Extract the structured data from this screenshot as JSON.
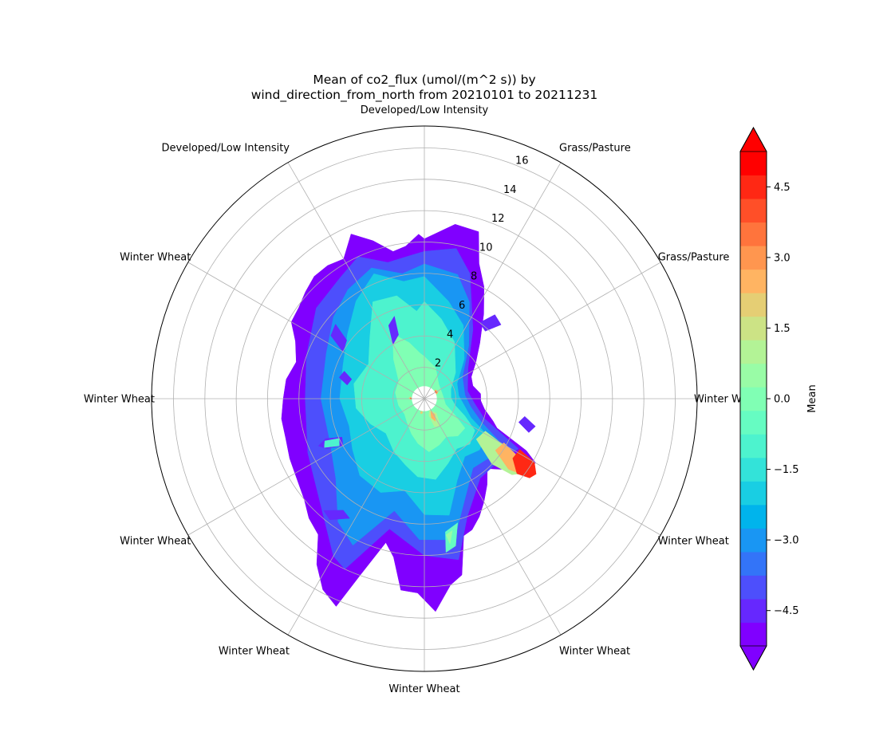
{
  "chart_data": {
    "type": "polar-contour",
    "title": "Mean of co2_flux (umol/(m^2 s)) by\nwind_direction_from_north from 20210101 to 20211231",
    "title_lines": [
      "Mean of co2_flux (umol/(m^2 s)) by",
      "wind_direction_from_north from 20210101 to 20211231"
    ],
    "theta_zero": "north",
    "theta_direction": "clockwise",
    "direction_labels": [
      {
        "angle": 0,
        "text": "Developed/Low Intensity"
      },
      {
        "angle": 30,
        "text": "Grass/Pasture"
      },
      {
        "angle": 60,
        "text": "Grass/Pasture"
      },
      {
        "angle": 90,
        "text": "Winter Wheat"
      },
      {
        "angle": 120,
        "text": "Winter Wheat"
      },
      {
        "angle": 150,
        "text": "Winter Wheat"
      },
      {
        "angle": 180,
        "text": "Winter Wheat"
      },
      {
        "angle": 210,
        "text": "Winter Wheat"
      },
      {
        "angle": 240,
        "text": "Winter Wheat"
      },
      {
        "angle": 270,
        "text": "Winter Wheat"
      },
      {
        "angle": 300,
        "text": "Winter Wheat"
      },
      {
        "angle": 330,
        "text": "Developed/Low Intensity"
      }
    ],
    "r_ticks": [
      2,
      4,
      6,
      8,
      10,
      12,
      14,
      16
    ],
    "r_tick_labels": [
      "2",
      "4",
      "6",
      "8",
      "10",
      "12",
      "14",
      "16"
    ],
    "r_tick_angle": 22.5,
    "r_max": 17.4,
    "grid": true,
    "colormap": "rainbow",
    "colorbar": {
      "label": "Mean",
      "vmin": -5.25,
      "vmax": 5.25,
      "levels": 21,
      "ticks": [
        -4.5,
        -3.0,
        -1.5,
        0.0,
        1.5,
        3.0,
        4.5
      ],
      "tick_labels": [
        "−4.5",
        "−3.0",
        "−1.5",
        "0.0",
        "1.5",
        "3.0",
        "4.5"
      ],
      "extend": "both",
      "location": "right"
    },
    "regions": [
      {
        "level": -5.0,
        "points": [
          [
            0,
            10.2
          ],
          [
            10,
            11.3
          ],
          [
            18,
            11.2
          ],
          [
            22,
            9.3
          ],
          [
            28,
            8.1
          ],
          [
            35,
            6.6
          ],
          [
            45,
            5.0
          ],
          [
            55,
            4.0
          ],
          [
            65,
            3.3
          ],
          [
            75,
            3.2
          ],
          [
            85,
            3.6
          ],
          [
            92,
            3.6
          ],
          [
            100,
            3.9
          ],
          [
            108,
            4.6
          ],
          [
            112,
            5.0
          ],
          [
            117,
            7.3
          ],
          [
            120,
            8.2
          ],
          [
            126,
            7.7
          ],
          [
            133,
            6.6
          ],
          [
            138,
            6.0
          ],
          [
            144,
            6.8
          ],
          [
            150,
            7.6
          ],
          [
            155,
            8.3
          ],
          [
            160,
            8.9
          ],
          [
            164,
            9.1
          ],
          [
            168,
            11.5
          ],
          [
            172,
            12.0
          ],
          [
            177,
            13.6
          ],
          [
            182,
            12.4
          ],
          [
            187,
            12.3
          ],
          [
            191,
            10.3
          ],
          [
            195,
            9.5
          ],
          [
            200,
            12.0
          ],
          [
            203,
            14.4
          ],
          [
            208,
            13.8
          ],
          [
            213,
            12.6
          ],
          [
            218,
            11.0
          ],
          [
            224,
            10.6
          ],
          [
            230,
            10.0
          ],
          [
            238,
            9.6
          ],
          [
            246,
            9.4
          ],
          [
            254,
            9.2
          ],
          [
            262,
            9.2
          ],
          [
            270,
            9.0
          ],
          [
            278,
            8.9
          ],
          [
            286,
            8.5
          ],
          [
            294,
            9.0
          ],
          [
            300,
            9.8
          ],
          [
            306,
            9.9
          ],
          [
            312,
            10.2
          ],
          [
            318,
            10.5
          ],
          [
            324,
            10.5
          ],
          [
            330,
            10.3
          ],
          [
            336,
            11.5
          ],
          [
            342,
            10.6
          ],
          [
            348,
            9.6
          ],
          [
            353,
            9.8
          ],
          [
            358,
            10.5
          ]
        ]
      },
      {
        "level": -4.0,
        "points": [
          [
            0,
            9.4
          ],
          [
            12,
            9.8
          ],
          [
            20,
            8.5
          ],
          [
            35,
            5.4
          ],
          [
            55,
            3.4
          ],
          [
            80,
            2.8
          ],
          [
            95,
            3.2
          ],
          [
            108,
            4.0
          ],
          [
            118,
            6.8
          ],
          [
            130,
            6.2
          ],
          [
            145,
            6.2
          ],
          [
            160,
            8.0
          ],
          [
            168,
            10.5
          ],
          [
            180,
            10.0
          ],
          [
            195,
            8.6
          ],
          [
            205,
            12.0
          ],
          [
            210,
            11.6
          ],
          [
            225,
            9.4
          ],
          [
            245,
            8.2
          ],
          [
            270,
            7.6
          ],
          [
            290,
            8.0
          ],
          [
            310,
            9.0
          ],
          [
            325,
            9.4
          ],
          [
            335,
            10.0
          ],
          [
            345,
            9.0
          ],
          [
            355,
            9.2
          ]
        ]
      },
      {
        "level": -3.0,
        "points": [
          [
            0,
            8.6
          ],
          [
            15,
            8.2
          ],
          [
            25,
            6.8
          ],
          [
            40,
            4.4
          ],
          [
            60,
            2.8
          ],
          [
            85,
            2.6
          ],
          [
            100,
            3.0
          ],
          [
            112,
            3.9
          ],
          [
            120,
            5.6
          ],
          [
            132,
            5.6
          ],
          [
            145,
            5.4
          ],
          [
            158,
            6.9
          ],
          [
            168,
            9.2
          ],
          [
            182,
            9.0
          ],
          [
            195,
            7.4
          ],
          [
            206,
            10.4
          ],
          [
            215,
            9.6
          ],
          [
            228,
            7.6
          ],
          [
            246,
            6.6
          ],
          [
            270,
            6.6
          ],
          [
            295,
            6.9
          ],
          [
            312,
            7.8
          ],
          [
            325,
            8.5
          ],
          [
            338,
            9.0
          ],
          [
            350,
            8.1
          ]
        ]
      },
      {
        "level": -2.0,
        "points": [
          [
            0,
            7.8
          ],
          [
            14,
            6.4
          ],
          [
            28,
            5.3
          ],
          [
            45,
            3.6
          ],
          [
            65,
            2.3
          ],
          [
            85,
            2.2
          ],
          [
            100,
            2.6
          ],
          [
            112,
            3.2
          ],
          [
            120,
            4.6
          ],
          [
            133,
            4.8
          ],
          [
            145,
            4.5
          ],
          [
            158,
            5.6
          ],
          [
            168,
            7.6
          ],
          [
            180,
            7.4
          ],
          [
            192,
            6.0
          ],
          [
            205,
            6.6
          ],
          [
            220,
            6.4
          ],
          [
            235,
            5.6
          ],
          [
            250,
            5.1
          ],
          [
            270,
            5.4
          ],
          [
            292,
            5.6
          ],
          [
            310,
            6.4
          ],
          [
            325,
            7.6
          ],
          [
            338,
            8.6
          ],
          [
            350,
            7.6
          ]
        ]
      },
      {
        "level": -1.0,
        "points": [
          [
            0,
            6.2
          ],
          [
            12,
            5.2
          ],
          [
            28,
            4.1
          ],
          [
            50,
            2.6
          ],
          [
            70,
            1.8
          ],
          [
            88,
            1.7
          ],
          [
            102,
            2.0
          ],
          [
            113,
            2.8
          ],
          [
            122,
            3.8
          ],
          [
            135,
            4.1
          ],
          [
            147,
            3.8
          ],
          [
            160,
            4.4
          ],
          [
            172,
            5.2
          ],
          [
            185,
            5.0
          ],
          [
            196,
            4.4
          ],
          [
            210,
            3.9
          ],
          [
            228,
            3.3
          ],
          [
            245,
            3.8
          ],
          [
            262,
            4.4
          ],
          [
            282,
            4.6
          ],
          [
            302,
            4.2
          ],
          [
            318,
            5.2
          ],
          [
            332,
            7.0
          ],
          [
            345,
            6.8
          ],
          [
            355,
            5.6
          ]
        ]
      },
      {
        "level": 0.0,
        "points": [
          [
            0,
            2.7
          ],
          [
            20,
            2.1
          ],
          [
            45,
            1.3
          ],
          [
            80,
            1.2
          ],
          [
            105,
            1.4
          ],
          [
            118,
            2.2
          ],
          [
            126,
            3.2
          ],
          [
            138,
            3.2
          ],
          [
            150,
            2.8
          ],
          [
            162,
            3.1
          ],
          [
            175,
            3.4
          ],
          [
            188,
            2.9
          ],
          [
            200,
            2.4
          ],
          [
            215,
            1.9
          ],
          [
            232,
            1.6
          ],
          [
            255,
            1.7
          ],
          [
            282,
            1.9
          ],
          [
            305,
            2.0
          ],
          [
            322,
            3.2
          ],
          [
            334,
            4.6
          ],
          [
            345,
            3.7
          ],
          [
            355,
            2.9
          ]
        ]
      },
      {
        "level": 1.0,
        "points": [
          [
            118,
            4.4
          ],
          [
            121,
            6.4
          ],
          [
            124,
            7.4
          ],
          [
            127,
            7.9
          ],
          [
            131,
            7.4
          ],
          [
            134,
            6.0
          ],
          [
            128,
            4.2
          ]
        ]
      },
      {
        "level": 2.5,
        "points": [
          [
            119,
            5.8
          ],
          [
            122,
            7.2
          ],
          [
            125,
            7.9
          ],
          [
            128,
            7.8
          ],
          [
            130,
            7.0
          ],
          [
            126,
            5.6
          ]
        ]
      },
      {
        "level": 4.5,
        "points": [
          [
            118,
            6.9
          ],
          [
            120,
            8.1
          ],
          [
            124,
            8.6
          ],
          [
            127,
            8.4
          ],
          [
            129,
            7.6
          ],
          [
            124,
            6.8
          ]
        ]
      },
      {
        "level": 1.0,
        "points": [
          [
            140,
            1.2
          ],
          [
            150,
            2.0
          ],
          [
            160,
            1.9
          ],
          [
            165,
            1.1
          ],
          [
            155,
            0.8
          ]
        ]
      },
      {
        "level": 2.5,
        "points": [
          [
            146,
            1.2
          ],
          [
            154,
            1.6
          ],
          [
            160,
            1.3
          ],
          [
            153,
            0.9
          ]
        ]
      },
      {
        "level": 2.5,
        "points": [
          [
            50,
            0.9
          ],
          [
            62,
            1.0
          ],
          [
            70,
            0.85
          ],
          [
            60,
            0.75
          ]
        ]
      },
      {
        "level": 4.5,
        "points": [
          [
            55,
            0.85
          ],
          [
            63,
            0.9
          ],
          [
            60,
            0.75
          ]
        ]
      },
      {
        "level": 2.0,
        "points": [
          [
            265,
            0.9
          ],
          [
            272,
            1.0
          ],
          [
            278,
            0.9
          ],
          [
            271,
            0.8
          ]
        ]
      },
      {
        "level": 4.5,
        "points": [
          [
            268,
            0.85
          ],
          [
            273,
            0.9
          ],
          [
            271,
            0.78
          ]
        ]
      },
      {
        "level": 2.0,
        "points": [
          [
            186,
            0.9
          ],
          [
            192,
            1.0
          ],
          [
            197,
            0.9
          ],
          [
            192,
            0.8
          ]
        ]
      },
      {
        "level": -4.5,
        "points": [
          [
            240,
            6.0
          ],
          [
            243,
            7.0
          ],
          [
            246,
            7.4
          ],
          [
            248,
            6.8
          ],
          [
            245,
            5.8
          ]
        ]
      },
      {
        "level": -1.0,
        "points": [
          [
            241,
            6.2
          ],
          [
            244,
            7.1
          ],
          [
            247,
            6.9
          ],
          [
            245,
            6.0
          ]
        ]
      },
      {
        "level": -4.5,
        "points": [
          [
            330,
            4.0
          ],
          [
            334,
            5.2
          ],
          [
            340,
            5.6
          ],
          [
            338,
            4.4
          ]
        ]
      },
      {
        "level": -4.5,
        "points": [
          [
            280,
            5.0
          ],
          [
            284,
            5.6
          ],
          [
            289,
            5.4
          ],
          [
            285,
            4.8
          ]
        ]
      },
      {
        "level": -4.5,
        "points": [
          [
            300,
            6.0
          ],
          [
            304,
            7.2
          ],
          [
            310,
            7.4
          ],
          [
            307,
            6.2
          ]
        ]
      },
      {
        "level": -0.5,
        "points": [
          [
            165,
            8.2
          ],
          [
            168,
            9.6
          ],
          [
            172,
            9.9
          ],
          [
            171,
            8.6
          ]
        ]
      },
      {
        "level": 0.5,
        "points": [
          [
            168,
            8.6
          ],
          [
            170,
            9.4
          ],
          [
            171,
            8.8
          ]
        ]
      },
      {
        "level": -4.5,
        "points": [
          [
            212,
            9.0
          ],
          [
            218,
            9.8
          ],
          [
            222,
            9.6
          ],
          [
            216,
            8.8
          ]
        ]
      },
      {
        "level": -4.5,
        "points": [
          [
            36,
            6.0
          ],
          [
            40,
            7.0
          ],
          [
            46,
            6.8
          ],
          [
            42,
            5.8
          ]
        ]
      },
      {
        "level": -4.5,
        "points": [
          [
            100,
            6.5
          ],
          [
            104,
            7.3
          ],
          [
            108,
            7.0
          ],
          [
            104,
            6.2
          ]
        ]
      }
    ],
    "inner_hole_radius": 0.8
  }
}
